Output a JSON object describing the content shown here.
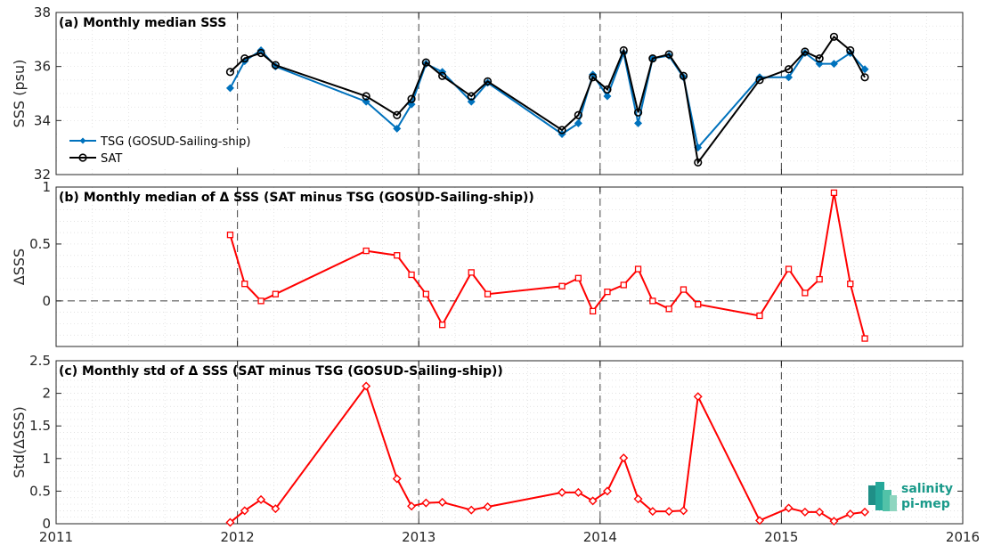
{
  "x_ticks": [
    "2011",
    "2012",
    "2013",
    "2014",
    "2015",
    "2016"
  ],
  "logo": {
    "line1": "salinity",
    "line2": "pi-mep"
  },
  "colors": {
    "tsg": "#0072BD",
    "sat": "#000000",
    "delta": "#ff0000",
    "axis": "#262626"
  },
  "chart_data": [
    {
      "type": "line",
      "title": "(a) Monthly median SSS",
      "ylabel": "SSS (psu)",
      "xlim": [
        2011.0,
        2016.0
      ],
      "ylim": [
        32,
        38
      ],
      "y_ticks": [
        "32",
        "34",
        "36",
        "38"
      ],
      "grid": true,
      "legend": "center-left",
      "series": [
        {
          "name": "TSG (GOSUD-Sailing-ship)",
          "marker": "diamond",
          "x": [
            2011.96,
            2012.04,
            2012.13,
            2012.21,
            2012.71,
            2012.88,
            2012.96,
            2013.04,
            2013.13,
            2013.29,
            2013.38,
            2013.79,
            2013.88,
            2013.96,
            2014.04,
            2014.13,
            2014.21,
            2014.29,
            2014.38,
            2014.46,
            2014.54,
            2014.88,
            2015.04,
            2015.13,
            2015.21,
            2015.29,
            2015.38,
            2015.46
          ],
          "y": [
            35.2,
            36.2,
            36.6,
            36.0,
            34.7,
            33.7,
            34.6,
            36.1,
            35.8,
            34.7,
            35.4,
            33.5,
            33.9,
            35.7,
            34.9,
            36.5,
            33.9,
            36.3,
            36.4,
            35.6,
            33.0,
            35.6,
            35.6,
            36.5,
            36.1,
            36.1,
            36.5,
            35.9
          ]
        },
        {
          "name": "SAT",
          "marker": "circle",
          "x": [
            2011.96,
            2012.04,
            2012.13,
            2012.21,
            2012.71,
            2012.88,
            2012.96,
            2013.04,
            2013.13,
            2013.29,
            2013.38,
            2013.79,
            2013.88,
            2013.96,
            2014.04,
            2014.13,
            2014.21,
            2014.29,
            2014.38,
            2014.46,
            2014.54,
            2014.88,
            2015.04,
            2015.13,
            2015.21,
            2015.29,
            2015.38,
            2015.46
          ],
          "y": [
            35.8,
            36.3,
            36.5,
            36.05,
            34.9,
            34.2,
            34.8,
            36.15,
            35.65,
            34.9,
            35.45,
            33.65,
            34.2,
            35.6,
            35.15,
            36.6,
            34.3,
            36.3,
            36.45,
            35.65,
            32.45,
            35.5,
            35.9,
            36.55,
            36.3,
            37.1,
            36.6,
            35.6
          ]
        }
      ]
    },
    {
      "type": "line",
      "title": "(b) Monthly median of Δ SSS (SAT minus TSG (GOSUD-Sailing-ship))",
      "ylabel": "ΔSSS",
      "xlim": [
        2011.0,
        2016.0
      ],
      "ylim": [
        -0.4,
        1.0
      ],
      "y_ticks": [
        "0",
        "0.5",
        "1"
      ],
      "grid": true,
      "zero_line": true,
      "series": [
        {
          "marker": "square",
          "x": [
            2011.96,
            2012.04,
            2012.13,
            2012.21,
            2012.71,
            2012.88,
            2012.96,
            2013.04,
            2013.13,
            2013.29,
            2013.38,
            2013.79,
            2013.88,
            2013.96,
            2014.04,
            2014.13,
            2014.21,
            2014.29,
            2014.38,
            2014.46,
            2014.54,
            2014.88,
            2015.04,
            2015.13,
            2015.21,
            2015.29,
            2015.38,
            2015.46
          ],
          "y": [
            0.58,
            0.15,
            0.0,
            0.06,
            0.44,
            0.4,
            0.23,
            0.06,
            -0.21,
            0.25,
            0.06,
            0.13,
            0.2,
            -0.09,
            0.08,
            0.14,
            0.28,
            0.0,
            -0.07,
            0.1,
            -0.03,
            -0.13,
            0.28,
            0.07,
            0.19,
            0.95,
            0.15,
            -0.33
          ]
        }
      ]
    },
    {
      "type": "line",
      "title": "(c) Monthly std of Δ SSS (SAT minus TSG (GOSUD-Sailing-ship))",
      "ylabel": "Std(ΔSSS)",
      "xlim": [
        2011.0,
        2016.0
      ],
      "ylim": [
        0,
        2.5
      ],
      "y_ticks": [
        "0",
        "0.5",
        "1",
        "1.5",
        "2",
        "2.5"
      ],
      "grid": true,
      "series": [
        {
          "marker": "diamond",
          "x": [
            2011.96,
            2012.04,
            2012.13,
            2012.21,
            2012.71,
            2012.88,
            2012.96,
            2013.04,
            2013.13,
            2013.29,
            2013.38,
            2013.79,
            2013.88,
            2013.96,
            2014.04,
            2014.13,
            2014.21,
            2014.29,
            2014.38,
            2014.46,
            2014.54,
            2014.88,
            2015.04,
            2015.13,
            2015.21,
            2015.29,
            2015.38,
            2015.46
          ],
          "y": [
            0.02,
            0.2,
            0.37,
            0.23,
            2.11,
            0.69,
            0.27,
            0.32,
            0.33,
            0.21,
            0.26,
            0.48,
            0.48,
            0.35,
            0.5,
            1.01,
            0.38,
            0.19,
            0.19,
            0.2,
            1.95,
            0.05,
            0.24,
            0.18,
            0.18,
            0.04,
            0.15,
            0.18
          ]
        }
      ]
    }
  ]
}
